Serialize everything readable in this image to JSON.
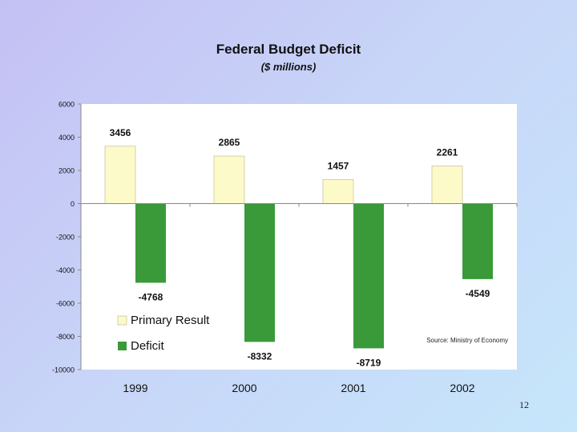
{
  "slide": {
    "page_number": "12"
  },
  "colors": {
    "primary": "#fdfac9",
    "deficit": "#3a9a3a",
    "plot_bg": "#ffffff"
  },
  "chart_data": {
    "type": "bar",
    "title": "Federal Budget Deficit",
    "subtitle": "($ millions)",
    "categories": [
      "1999",
      "2000",
      "2001",
      "2002"
    ],
    "series": [
      {
        "name": "Primary Result",
        "values": [
          3456,
          2865,
          1457,
          2261
        ]
      },
      {
        "name": "Deficit",
        "values": [
          -4768,
          -8332,
          -8719,
          -4549
        ]
      }
    ],
    "y_ticks": [
      6000,
      4000,
      2000,
      0,
      -2000,
      -4000,
      -6000,
      -8000,
      -10000
    ],
    "ylim": [
      -10000,
      6000
    ],
    "xlabel": "",
    "ylabel": "",
    "grid": false,
    "legend_position": "bottom-left",
    "annotation": "Source: Ministry of Economy"
  }
}
